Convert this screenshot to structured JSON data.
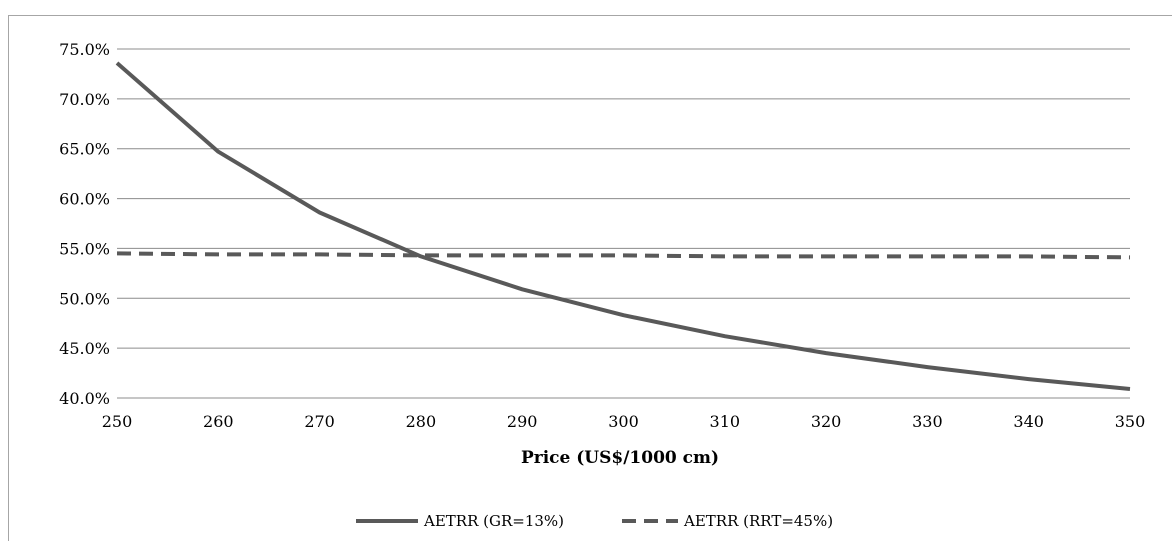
{
  "chart_data": {
    "type": "line",
    "title": "",
    "xlabel": "Price (US$/1000 cm)",
    "ylabel": "",
    "x": [
      250,
      260,
      270,
      280,
      290,
      300,
      310,
      320,
      330,
      340,
      350
    ],
    "xlim": [
      250,
      350
    ],
    "ylim": [
      40,
      75
    ],
    "y_ticks": [
      40,
      45,
      50,
      55,
      60,
      65,
      70,
      75
    ],
    "y_tick_format": "percent-1dp",
    "grid": true,
    "legend_position": "bottom",
    "series": [
      {
        "name": "AETRR (GR=13%)",
        "style": "solid",
        "color": "#595959",
        "values": [
          73.6,
          64.7,
          58.6,
          54.2,
          50.9,
          48.3,
          46.2,
          44.5,
          43.1,
          41.9,
          40.9
        ]
      },
      {
        "name": "AETRR (RRT=45%)",
        "style": "dashed",
        "color": "#595959",
        "values": [
          54.5,
          54.4,
          54.4,
          54.3,
          54.3,
          54.3,
          54.2,
          54.2,
          54.2,
          54.2,
          54.1
        ]
      }
    ]
  }
}
